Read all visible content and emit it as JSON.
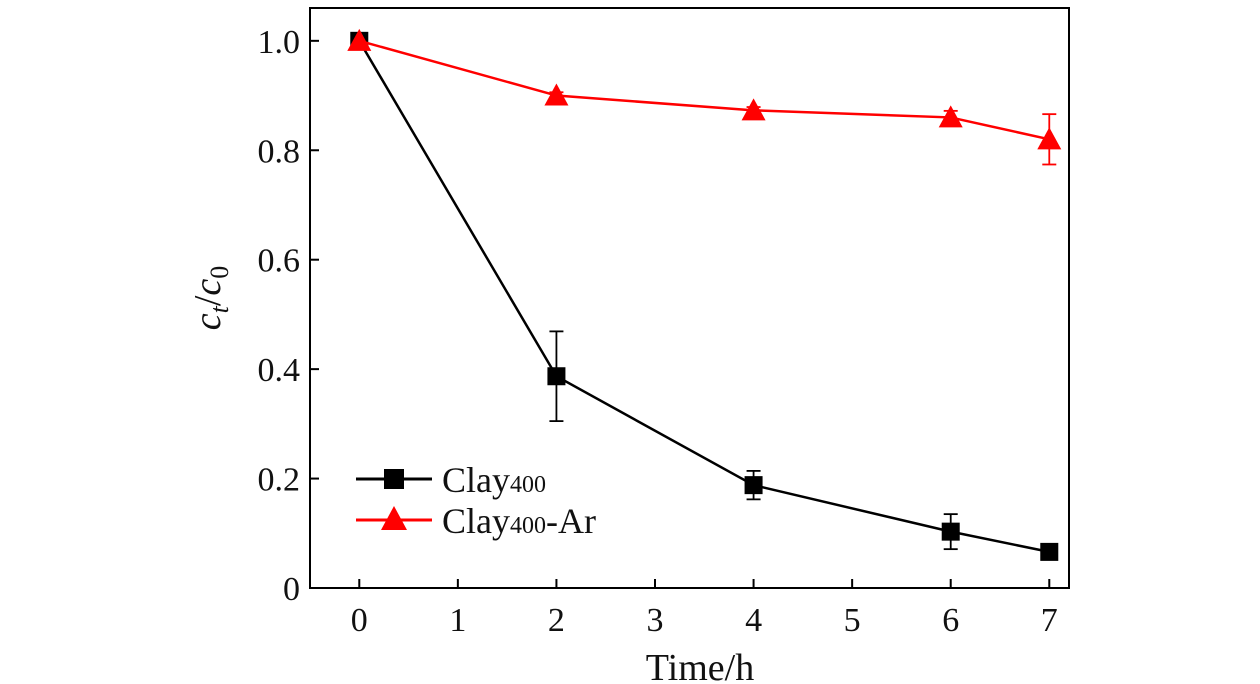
{
  "chart_data": {
    "type": "line",
    "title": "",
    "xlabel": "Time/h",
    "ylabel": {
      "c": "c",
      "t_sub": "t",
      "slash": "/",
      "c2": "c",
      "zero_sub": "0"
    },
    "xlim": [
      -0.5,
      7.2
    ],
    "ylim": [
      0,
      1.06
    ],
    "x_ticks": [
      0,
      1,
      2,
      3,
      4,
      5,
      6,
      7
    ],
    "x_tick_labels": [
      "0",
      "1",
      "2",
      "3",
      "4",
      "5",
      "6",
      "7"
    ],
    "y_ticks": [
      0,
      0.2,
      0.4,
      0.6,
      0.8,
      1.0
    ],
    "y_tick_labels": [
      "0",
      "0.2",
      "0.4",
      "0.6",
      "0.8",
      "1.0"
    ],
    "legend_position": "bottom-left",
    "series": [
      {
        "name": "Clay400",
        "label_main": "Clay",
        "label_sub": "400",
        "label_suffix": "",
        "color": "#000000",
        "marker": "square",
        "x": [
          0,
          2,
          4,
          6,
          7
        ],
        "y": [
          1.0,
          0.387,
          0.188,
          0.103,
          0.066
        ],
        "err": [
          0.0,
          0.082,
          0.026,
          0.032,
          0.006
        ]
      },
      {
        "name": "Clay400-Ar",
        "label_main": "Clay",
        "label_sub": "400",
        "label_suffix": "-Ar",
        "color": "#ff0000",
        "marker": "triangle",
        "x": [
          0,
          2,
          4,
          6,
          7
        ],
        "y": [
          1.0,
          0.9,
          0.873,
          0.86,
          0.82
        ],
        "err": [
          0.0,
          0.006,
          0.006,
          0.012,
          0.046
        ]
      }
    ]
  }
}
